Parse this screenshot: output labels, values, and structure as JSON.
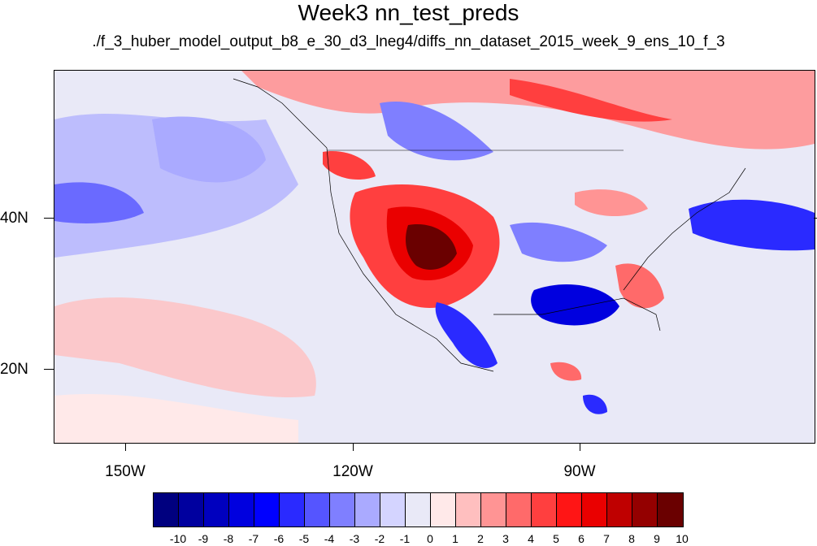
{
  "title": "Week3 nn_test_preds",
  "subtitle": "./f_3_huber_model_output_b8_e_30_d3_lneg4/diffs_nn_dataset_2015_week_9_ens_10_f_3",
  "map": {
    "lon_range": [
      -160,
      -62
    ],
    "lat_range": [
      11,
      60
    ],
    "lat_labels": [
      "40N",
      "20N"
    ],
    "lon_labels": [
      "150W",
      "120W",
      "90W"
    ]
  },
  "colorbar": {
    "labels": [
      "-10",
      "-9",
      "-8",
      "-7",
      "-6",
      "-5",
      "-4",
      "-3",
      "-2",
      "-1",
      "0",
      "1",
      "2",
      "3",
      "4",
      "5",
      "6",
      "7",
      "8",
      "9",
      "10"
    ],
    "colors": [
      "#00007f",
      "#00009f",
      "#0000bf",
      "#0000df",
      "#0000ff",
      "#2a2aff",
      "#5555ff",
      "#7f7fff",
      "#aaaaff",
      "#d4d4ff",
      "#e9e9f7",
      "#ffe9e9",
      "#ffbfbf",
      "#ff9494",
      "#ff6a6a",
      "#ff3f3f",
      "#ff1515",
      "#ea0000",
      "#bf0000",
      "#940000",
      "#6a0000"
    ]
  }
}
